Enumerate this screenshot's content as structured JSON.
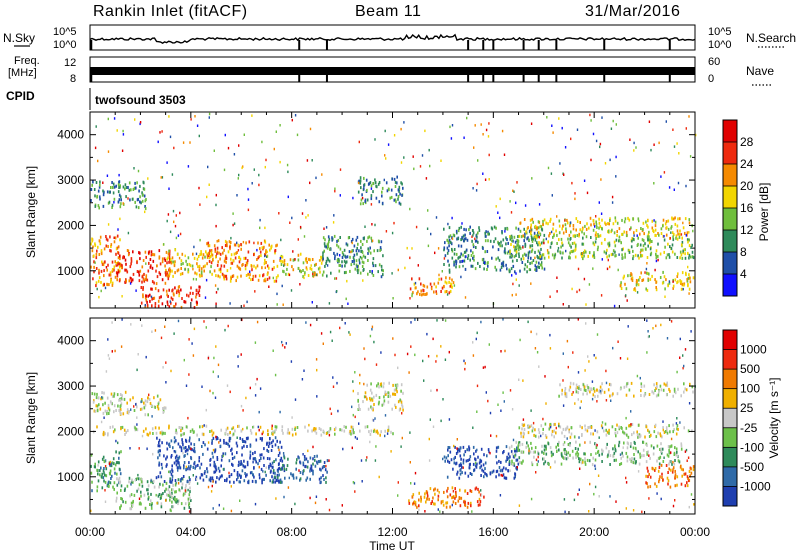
{
  "header": {
    "station": "Rankin Inlet (fitACF)",
    "beam": "Beam 11",
    "date": "31/Mar/2016"
  },
  "noise_panel": {
    "left_label": "N.Sky",
    "right_label": "N.Search",
    "left_ticks": [
      "10^5",
      "10^0"
    ],
    "right_ticks": [
      "10^5",
      "10^0"
    ]
  },
  "freq_panel": {
    "left_label_line1": "Freq.",
    "left_label_line2": "[MHz]",
    "right_label": "Nave",
    "left_ticks": [
      "12",
      "8"
    ],
    "right_ticks": [
      "60",
      "0"
    ]
  },
  "cpid_panel": {
    "label": "CPID",
    "mode": "twofsound 3503"
  },
  "x_axis": {
    "label": "Time UT",
    "ticks": [
      "00:00",
      "04:00",
      "08:00",
      "12:00",
      "16:00",
      "20:00",
      "00:00"
    ]
  },
  "chart_data": [
    {
      "type": "heatmap",
      "quantity": "Power",
      "ylabel": "Slant Range [km]",
      "xlabel": "Time UT",
      "x_range_hours": [
        0,
        24
      ],
      "ylim": [
        180,
        4500
      ],
      "y_ticks": [
        1000,
        2000,
        3000,
        4000
      ],
      "colorbar": {
        "label": "Power [dB]",
        "ticks": [
          4,
          8,
          12,
          16,
          20,
          24,
          28
        ],
        "colors": [
          "#1010ff",
          "#1f4fa8",
          "#2e8a5a",
          "#6fbe3c",
          "#f2d500",
          "#f58a00",
          "#ee2a0e",
          "#e00000"
        ]
      },
      "echo_regions": [
        {
          "t": [
            0.0,
            1.2
          ],
          "r": [
            700,
            1800
          ],
          "level": 5
        },
        {
          "t": [
            1.0,
            3.2
          ],
          "r": [
            750,
            1500
          ],
          "level": 6
        },
        {
          "t": [
            2.0,
            4.4
          ],
          "r": [
            200,
            700
          ],
          "level": 6
        },
        {
          "t": [
            3.0,
            4.8
          ],
          "r": [
            900,
            1500
          ],
          "level": 4
        },
        {
          "t": [
            4.6,
            7.4
          ],
          "r": [
            800,
            1700
          ],
          "level": 5
        },
        {
          "t": [
            7.4,
            9.2
          ],
          "r": [
            900,
            1400
          ],
          "level": 4
        },
        {
          "t": [
            0.0,
            2.2
          ],
          "r": [
            2400,
            3000
          ],
          "level": 2
        },
        {
          "t": [
            9.2,
            11.6
          ],
          "r": [
            900,
            1800
          ],
          "level": 2
        },
        {
          "t": [
            10.6,
            12.4
          ],
          "r": [
            2500,
            3100
          ],
          "level": 2
        },
        {
          "t": [
            12.6,
            14.4
          ],
          "r": [
            500,
            900
          ],
          "level": 5
        },
        {
          "t": [
            14.0,
            18.0
          ],
          "r": [
            1000,
            2000
          ],
          "level": 2
        },
        {
          "t": [
            17.0,
            24.0
          ],
          "r": [
            1800,
            2200
          ],
          "level": 4
        },
        {
          "t": [
            16.6,
            24.0
          ],
          "r": [
            1300,
            1800
          ],
          "level": 3
        },
        {
          "t": [
            21.0,
            24.0
          ],
          "r": [
            600,
            1000
          ],
          "level": 4
        }
      ]
    },
    {
      "type": "heatmap",
      "quantity": "Velocity",
      "ylabel": "Slant Range [km]",
      "xlabel": "Time UT",
      "x_range_hours": [
        0,
        24
      ],
      "ylim": [
        180,
        4500
      ],
      "y_ticks": [
        1000,
        2000,
        3000,
        4000
      ],
      "colorbar": {
        "label": "Velocity [m s⁻¹]",
        "ticks": [
          1000,
          500,
          100,
          25,
          -25,
          -100,
          -500,
          -1000
        ],
        "colors": [
          "#1f3fb0",
          "#2f6aa8",
          "#2e8a5a",
          "#6cc04a",
          "#c8c8c8",
          "#f0b000",
          "#f07a00",
          "#ee2a0e",
          "#e00000"
        ]
      },
      "echo_regions": [
        {
          "t": [
            0.0,
            1.2
          ],
          "r": [
            700,
            1600
          ],
          "level": 2
        },
        {
          "t": [
            1.0,
            4.0
          ],
          "r": [
            300,
            1000
          ],
          "level": 3
        },
        {
          "t": [
            2.6,
            7.6
          ],
          "r": [
            900,
            1900
          ],
          "level": 0
        },
        {
          "t": [
            7.2,
            9.4
          ],
          "r": [
            900,
            1500
          ],
          "level": 1
        },
        {
          "t": [
            0.0,
            12.0
          ],
          "r": [
            1950,
            2150
          ],
          "level": 4
        },
        {
          "t": [
            0.0,
            3.0
          ],
          "r": [
            2400,
            2900
          ],
          "level": 4
        },
        {
          "t": [
            10.6,
            12.4
          ],
          "r": [
            2500,
            3100
          ],
          "level": 4
        },
        {
          "t": [
            12.6,
            15.6
          ],
          "r": [
            350,
            800
          ],
          "level": 6
        },
        {
          "t": [
            14.0,
            17.0
          ],
          "r": [
            1000,
            1700
          ],
          "level": 0
        },
        {
          "t": [
            17.0,
            24.0
          ],
          "r": [
            1900,
            2200
          ],
          "level": 4
        },
        {
          "t": [
            18.5,
            24.0
          ],
          "r": [
            2800,
            3100
          ],
          "level": 4
        },
        {
          "t": [
            16.6,
            23.5
          ],
          "r": [
            1300,
            1800
          ],
          "level": 3
        },
        {
          "t": [
            22.0,
            24.0
          ],
          "r": [
            800,
            1300
          ],
          "level": 6
        }
      ]
    }
  ]
}
